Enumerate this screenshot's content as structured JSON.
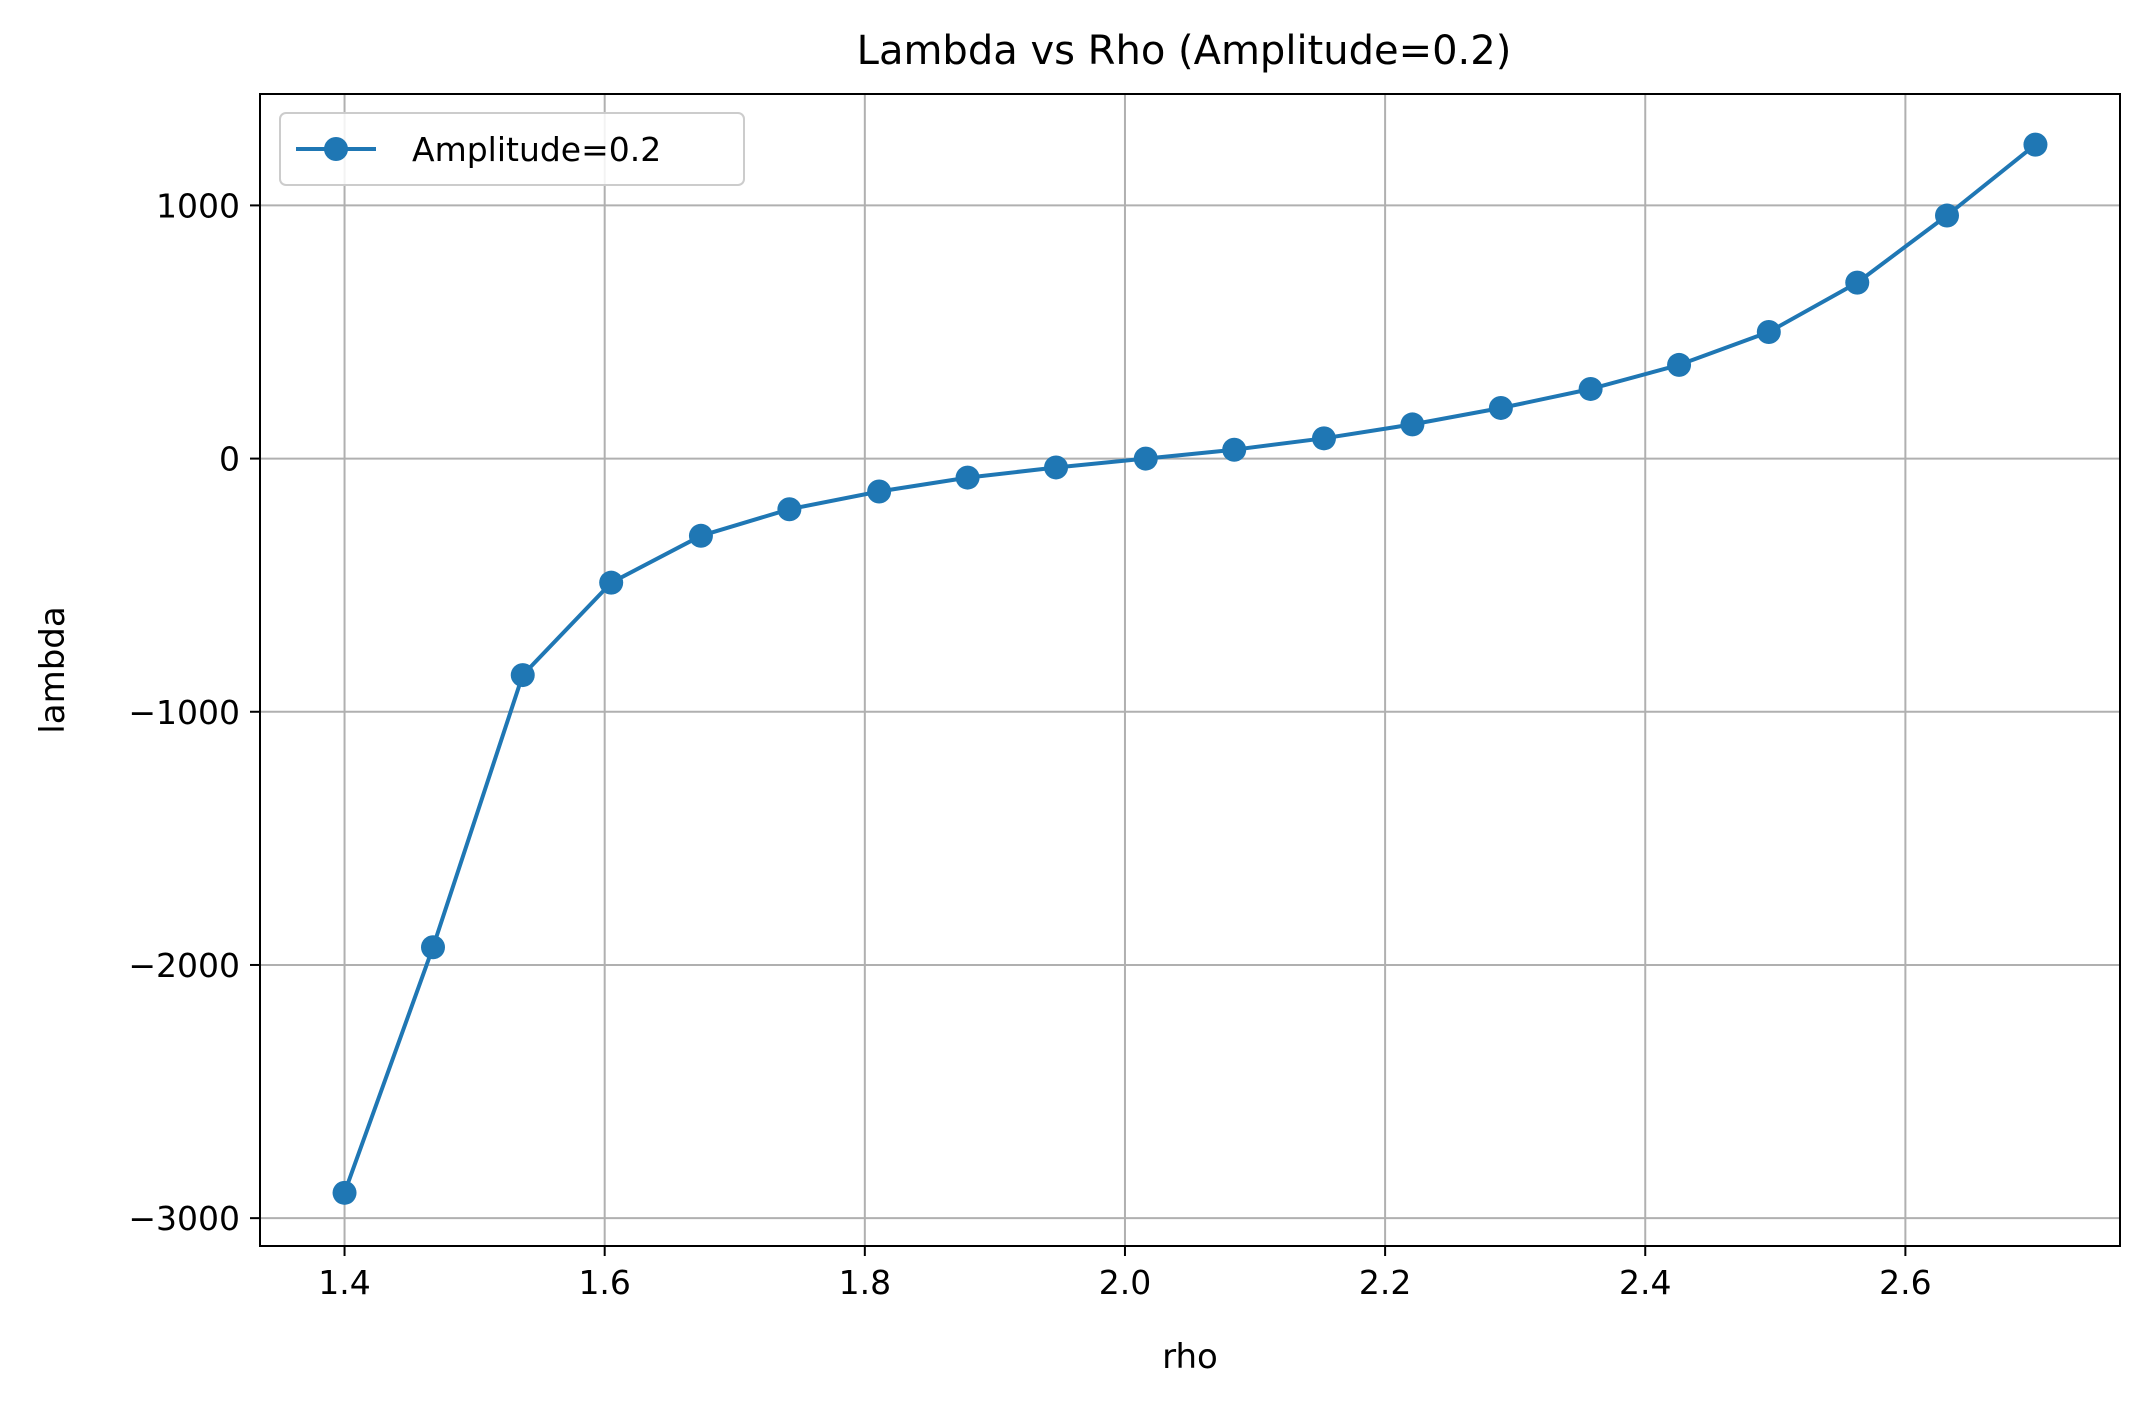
{
  "chart_data": {
    "type": "line",
    "title": "Lambda vs Rho (Amplitude=0.2)",
    "xlabel": "rho",
    "ylabel": "lambda",
    "xlim": [
      1.335,
      2.765
    ],
    "ylim": [
      -3110,
      1440
    ],
    "xticks": [
      1.4,
      1.6,
      1.8,
      2.0,
      2.2,
      2.4,
      2.6
    ],
    "xtick_labels": [
      "1.4",
      "1.6",
      "1.8",
      "2.0",
      "2.2",
      "2.4",
      "2.6"
    ],
    "yticks": [
      -3000,
      -2000,
      -1000,
      0,
      1000
    ],
    "ytick_labels": [
      "−3000",
      "−2000",
      "−1000",
      "0",
      "1000"
    ],
    "grid": true,
    "legend_position": "top-left",
    "colors": {
      "series": "#1f77b4",
      "grid": "#b0b0b0",
      "axes": "#000000"
    },
    "series": [
      {
        "name": "Amplitude=0.2",
        "marker": "circle",
        "x": [
          1.4,
          1.468,
          1.537,
          1.605,
          1.674,
          1.742,
          1.811,
          1.879,
          1.947,
          2.016,
          2.084,
          2.153,
          2.221,
          2.289,
          2.358,
          2.426,
          2.495,
          2.563,
          2.632,
          2.7
        ],
        "y": [
          -2900,
          -1930,
          -855,
          -490,
          -305,
          -200,
          -130,
          -75,
          -35,
          0,
          35,
          80,
          135,
          200,
          275,
          370,
          500,
          695,
          960,
          1240
        ]
      }
    ]
  }
}
